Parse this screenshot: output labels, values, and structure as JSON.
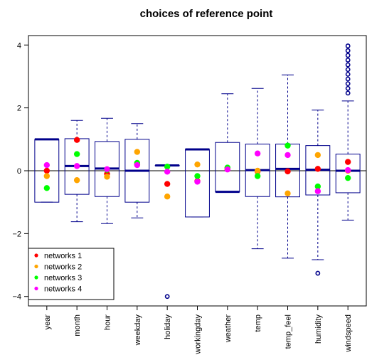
{
  "chart_data": {
    "type": "boxplot",
    "title": "choices of reference point",
    "xlabel": "",
    "ylabel": "",
    "ylim": [
      -4.3,
      4.3
    ],
    "yticks": [
      -4,
      -2,
      0,
      2,
      4
    ],
    "ytick_labels": [
      "−4",
      "−2",
      "0",
      "2",
      "4"
    ],
    "reference_line": 0,
    "grid": false,
    "legend_position": "bottom-left",
    "colors": {
      "box": "#00008b",
      "frame": "#000000",
      "reference_line": "#000000"
    },
    "categories": [
      "year",
      "month",
      "hour",
      "weekday",
      "holiday",
      "workingday",
      "weather",
      "temp",
      "temp_feel",
      "humidity",
      "windspeed"
    ],
    "boxes": [
      {
        "whisker_low": -1.0,
        "q1": -1.0,
        "median": 1.0,
        "q3": 1.0,
        "whisker_high": 1.0,
        "outliers": []
      },
      {
        "whisker_low": -1.62,
        "q1": -0.75,
        "median": 0.15,
        "q3": 1.02,
        "whisker_high": 1.6,
        "outliers": []
      },
      {
        "whisker_low": -1.68,
        "q1": -0.82,
        "median": 0.07,
        "q3": 0.93,
        "whisker_high": 1.67,
        "outliers": []
      },
      {
        "whisker_low": -1.5,
        "q1": -1.0,
        "median": 0.0,
        "q3": 1.0,
        "whisker_high": 1.5,
        "outliers": []
      },
      {
        "whisker_low": 0.17,
        "q1": 0.17,
        "median": 0.17,
        "q3": 0.17,
        "whisker_high": 0.17,
        "outliers": [
          -4.0
        ]
      },
      {
        "whisker_low": -1.47,
        "q1": -1.47,
        "median": 0.68,
        "q3": 0.68,
        "whisker_high": 0.68,
        "outliers": []
      },
      {
        "whisker_low": -0.67,
        "q1": -0.67,
        "median": -0.67,
        "q3": 0.9,
        "whisker_high": 2.45,
        "outliers": []
      },
      {
        "whisker_low": -2.48,
        "q1": -0.82,
        "median": 0.02,
        "q3": 0.85,
        "whisker_high": 2.62,
        "outliers": []
      },
      {
        "whisker_low": -2.78,
        "q1": -0.83,
        "median": 0.06,
        "q3": 0.85,
        "whisker_high": 3.05,
        "outliers": []
      },
      {
        "whisker_low": -2.83,
        "q1": -0.77,
        "median": 0.03,
        "q3": 0.8,
        "whisker_high": 1.93,
        "outliers": [
          -3.26
        ]
      },
      {
        "whisker_low": -1.57,
        "q1": -0.7,
        "median": 0.0,
        "q3": 0.53,
        "whisker_high": 2.22,
        "outliers": [
          2.47,
          2.62,
          2.77,
          2.92,
          3.07,
          3.22,
          3.37,
          3.52,
          3.67,
          3.82,
          3.97
        ]
      }
    ],
    "series": [
      {
        "name": "networks 1",
        "color": "#ff0000",
        "values": [
          0.0,
          0.98,
          -0.1,
          0.2,
          -0.42,
          -0.33,
          0.05,
          -0.02,
          -0.02,
          0.06,
          0.28
        ]
      },
      {
        "name": "networks 2",
        "color": "#ffa500",
        "values": [
          -0.17,
          -0.3,
          -0.19,
          0.6,
          -0.82,
          0.2,
          0.08,
          0.0,
          -0.72,
          0.5,
          0.0
        ]
      },
      {
        "name": "networks 3",
        "color": "#00ff00",
        "values": [
          -0.55,
          0.53,
          0.03,
          0.25,
          0.13,
          -0.17,
          0.1,
          -0.17,
          0.8,
          -0.5,
          -0.23
        ]
      },
      {
        "name": "networks 4",
        "color": "#ff00ff",
        "values": [
          0.18,
          0.15,
          0.05,
          0.18,
          -0.03,
          -0.35,
          0.04,
          0.55,
          0.5,
          -0.65,
          0.02
        ]
      }
    ]
  }
}
